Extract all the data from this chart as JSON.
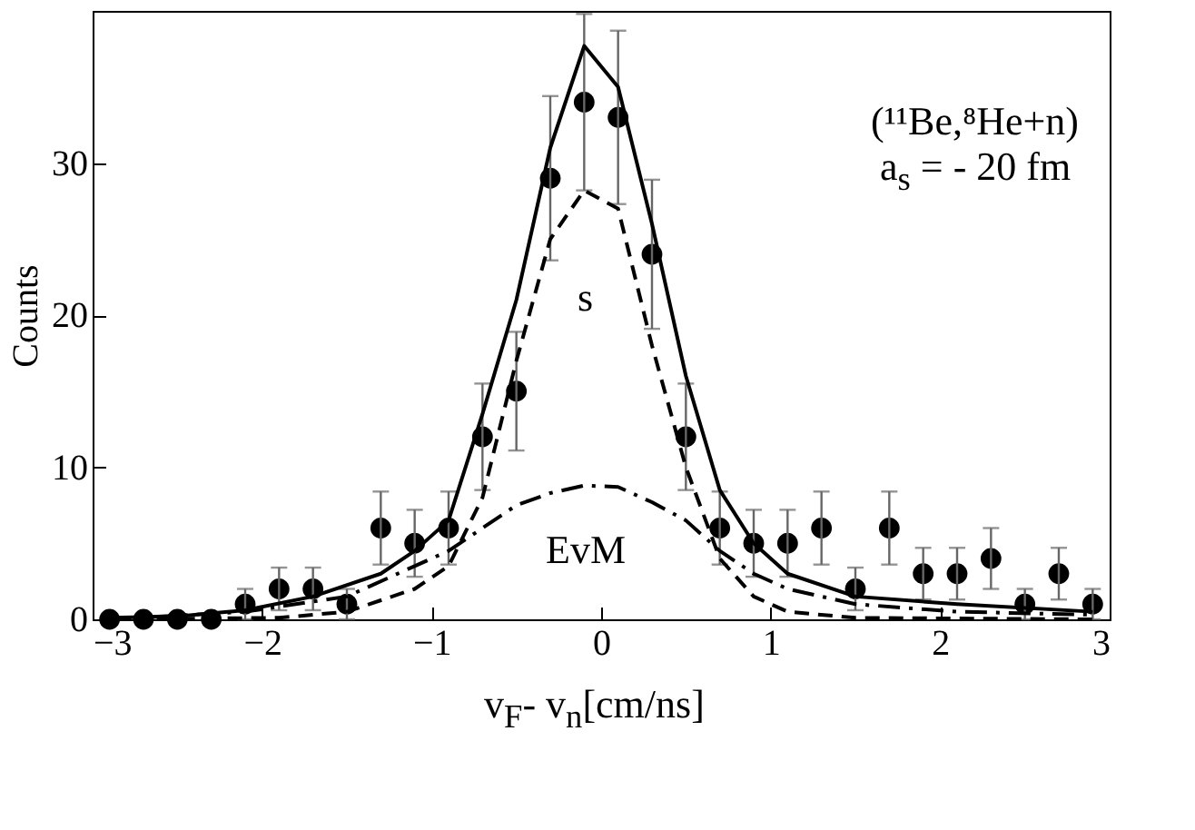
{
  "chart_data": {
    "type": "scatter",
    "xlabel": "v$_{F}$- v$_{n}$[cm/ns]",
    "ylabel": "Counts",
    "xlim": [
      -3,
      3
    ],
    "xticks": [
      -3,
      -2,
      -1,
      0,
      1,
      2,
      3
    ],
    "ylim": [
      0,
      40
    ],
    "yticks": [
      0,
      10,
      20,
      30
    ],
    "grid": false,
    "annotations": [
      "(¹¹Be,⁸He+n)",
      "a$_{s}$ = - 20 fm",
      "s",
      "EvM"
    ],
    "series": [
      {
        "marker": "circle",
        "color": "#000000",
        "x": [
          -2.9,
          -2.7,
          -2.5,
          -2.3,
          -2.1,
          -1.9,
          -1.7,
          -1.5,
          -1.3,
          -1.1,
          -0.9,
          -0.7,
          -0.5,
          -0.3,
          -0.1,
          0.1,
          0.3,
          0.5,
          0.7,
          0.9,
          1.1,
          1.3,
          1.5,
          1.7,
          1.9,
          2.1,
          2.3,
          2.5,
          2.7,
          2.9
        ],
        "values": [
          0,
          0,
          0,
          0,
          1,
          2,
          2,
          1,
          6,
          5,
          6,
          12,
          15,
          29,
          34,
          33,
          24,
          12,
          6,
          5,
          5,
          6,
          2,
          6,
          3,
          3,
          4,
          1,
          3,
          1
        ],
        "errors": [
          null,
          null,
          null,
          null,
          1,
          1.4,
          1.4,
          1,
          2.4,
          2.2,
          2.4,
          3.5,
          3.9,
          5.4,
          5.8,
          5.7,
          4.9,
          3.5,
          2.4,
          2.2,
          2.2,
          2.4,
          1.4,
          2.4,
          1.7,
          1.7,
          2,
          1,
          1.7,
          1
        ]
      },
      {
        "type": "line",
        "line_style": "solid",
        "color": "#000000",
        "x": [
          -2.9,
          -2.5,
          -2.1,
          -1.7,
          -1.3,
          -1.1,
          -0.9,
          -0.7,
          -0.5,
          -0.3,
          -0.1,
          0.1,
          0.3,
          0.5,
          0.7,
          0.9,
          1.1,
          1.5,
          2.1,
          2.9
        ],
        "values": [
          0.1,
          0.2,
          0.6,
          1.5,
          3,
          4.5,
          6.5,
          13.5,
          21,
          31,
          37.7,
          35,
          26,
          16,
          8.5,
          5,
          3,
          1.5,
          1,
          0.5
        ]
      },
      {
        "type": "line",
        "line_style": "dashed",
        "color": "#000000",
        "x": [
          -2.9,
          -1.9,
          -1.5,
          -1.1,
          -0.9,
          -0.7,
          -0.5,
          -0.3,
          -0.1,
          0.1,
          0.3,
          0.5,
          0.7,
          0.9,
          1.1,
          1.5,
          2.9
        ],
        "values": [
          0,
          0.1,
          0.5,
          2,
          3.5,
          8,
          17,
          25,
          28.2,
          27,
          18,
          10,
          4,
          1.5,
          0.5,
          0.1,
          0
        ]
      },
      {
        "type": "line",
        "line_style": "dashdot",
        "color": "#000000",
        "x": [
          -2.9,
          -2.1,
          -1.5,
          -1.1,
          -0.9,
          -0.7,
          -0.5,
          -0.3,
          -0.1,
          0.1,
          0.3,
          0.5,
          0.7,
          0.9,
          1.1,
          1.5,
          2.1,
          2.9
        ],
        "values": [
          0,
          0.5,
          1.5,
          3.5,
          4.5,
          6,
          7.5,
          8.3,
          8.8,
          8.7,
          7.7,
          6.5,
          4.5,
          3,
          2,
          1,
          0.5,
          0.3
        ]
      }
    ]
  }
}
